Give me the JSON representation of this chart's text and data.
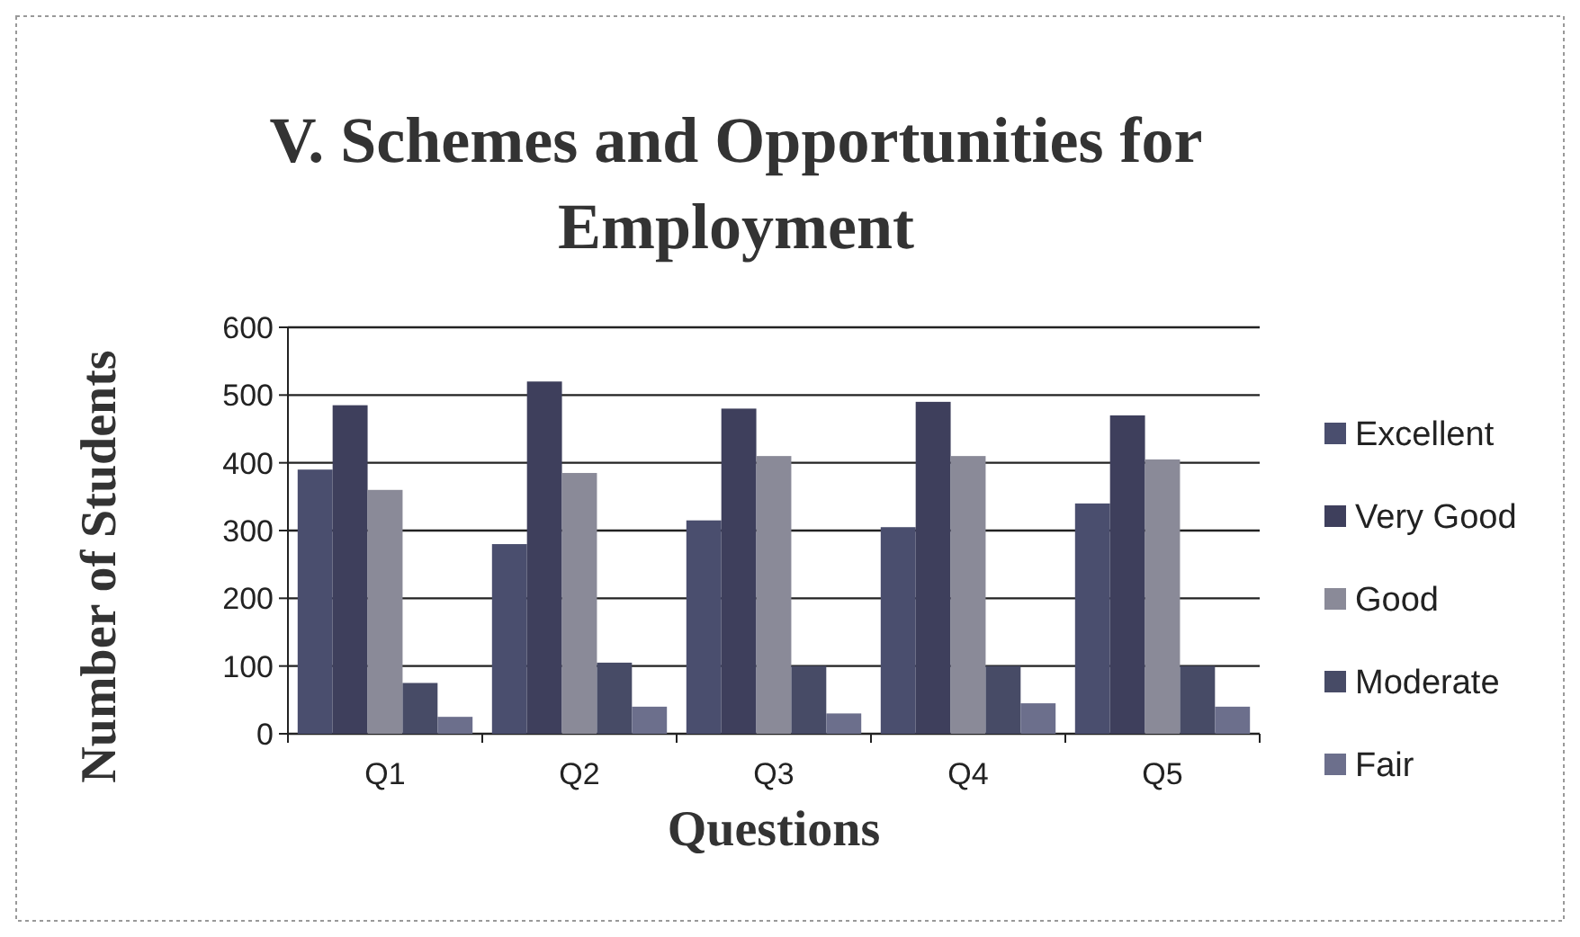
{
  "chart_data": {
    "type": "bar",
    "title": "V. Schemes and Opportunities for Employment",
    "xlabel": "Questions",
    "ylabel": "Number of Students",
    "categories": [
      "Q1",
      "Q2",
      "Q3",
      "Q4",
      "Q5"
    ],
    "series": [
      {
        "name": "Excellent",
        "color": "#4a4e6e",
        "values": [
          390,
          280,
          315,
          305,
          340
        ]
      },
      {
        "name": "Very Good",
        "color": "#3e3f5c",
        "values": [
          485,
          520,
          480,
          490,
          470
        ]
      },
      {
        "name": "Good",
        "color": "#8a8a98",
        "values": [
          360,
          385,
          410,
          410,
          405
        ]
      },
      {
        "name": "Moderate",
        "color": "#474b66",
        "values": [
          75,
          105,
          100,
          100,
          100
        ]
      },
      {
        "name": "Fair",
        "color": "#6c6f8c",
        "values": [
          25,
          40,
          30,
          45,
          40
        ]
      }
    ],
    "ylim": [
      0,
      600
    ],
    "yticks": [
      0,
      100,
      200,
      300,
      400,
      500,
      600
    ],
    "grid": "y",
    "legend": "right"
  }
}
